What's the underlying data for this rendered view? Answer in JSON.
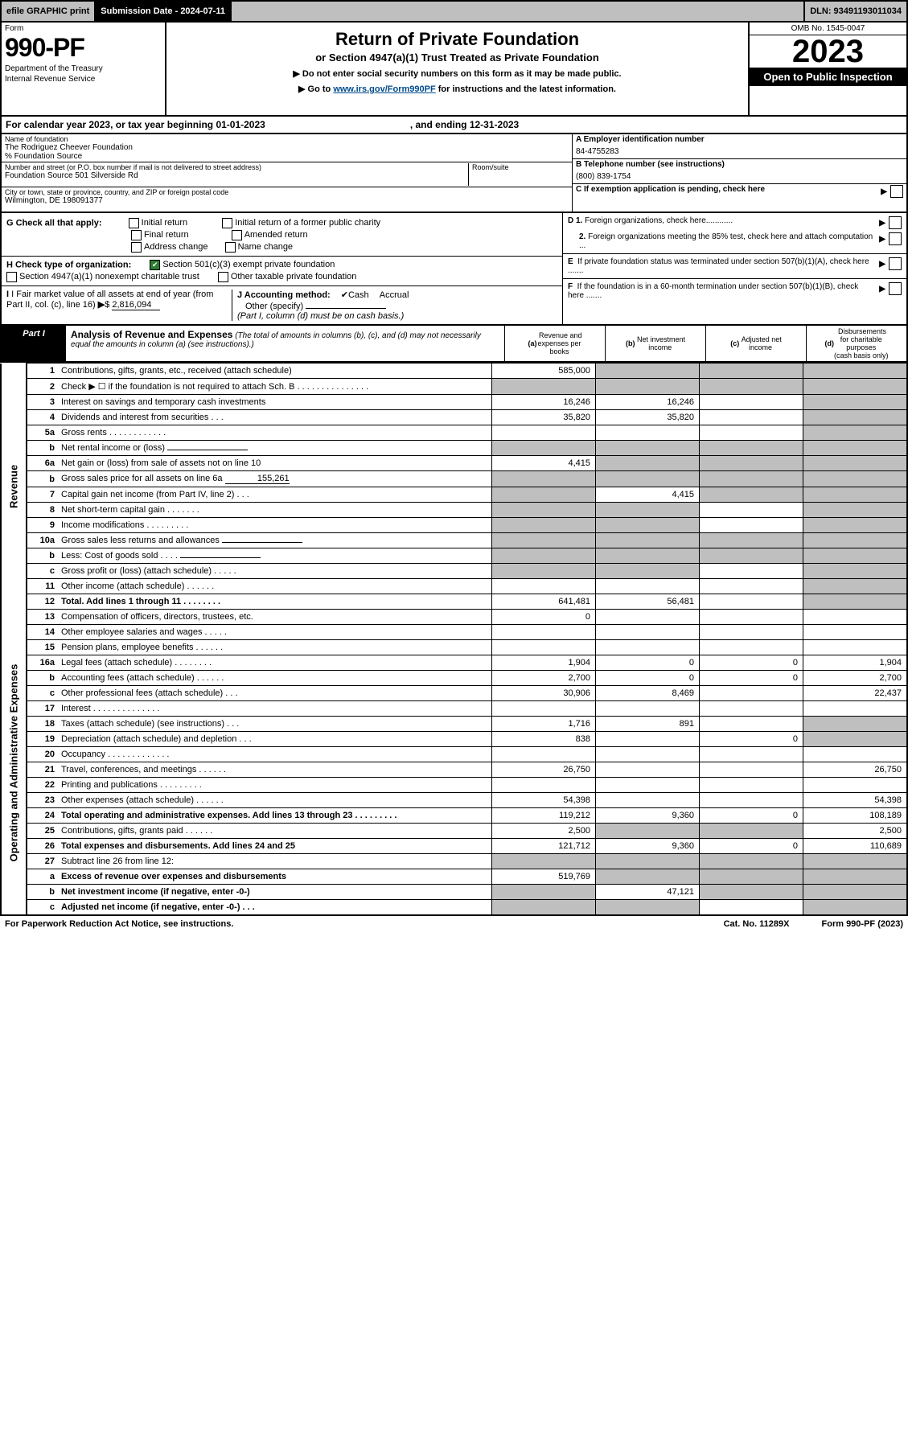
{
  "top": {
    "efile": "efile GRAPHIC print",
    "sub_label": "Submission Date - 2024-07-11",
    "dln": "DLN: 93491193011034"
  },
  "header": {
    "form_word": "Form",
    "form_num": "990-PF",
    "dept": "Department of the Treasury",
    "irs": "Internal Revenue Service",
    "title": "Return of Private Foundation",
    "subtitle": "or Section 4947(a)(1) Trust Treated as Private Foundation",
    "inst1": "▶ Do not enter social security numbers on this form as it may be made public.",
    "inst2_pre": "▶ Go to ",
    "inst2_link": "www.irs.gov/Form990PF",
    "inst2_post": " for instructions and the latest information.",
    "omb": "OMB No. 1545-0047",
    "year": "2023",
    "open": "Open to Public Inspection"
  },
  "cal": {
    "text": "For calendar year 2023, or tax year beginning 01-01-2023",
    "ending": ", and ending 12-31-2023"
  },
  "info": {
    "name_lbl": "Name of foundation",
    "name": "The Rodriguez Cheever Foundation",
    "care": "% Foundation Source",
    "addr_lbl": "Number and street (or P.O. box number if mail is not delivered to street address)",
    "addr": "Foundation Source 501 Silverside Rd",
    "room_lbl": "Room/suite",
    "city_lbl": "City or town, state or province, country, and ZIP or foreign postal code",
    "city": "Wilmington, DE  198091377",
    "a_lbl": "A Employer identification number",
    "a_val": "84-4755283",
    "b_lbl": "B Telephone number (see instructions)",
    "b_val": "(800) 839-1754",
    "c_lbl": "C If exemption application is pending, check here"
  },
  "checks": {
    "g": "G Check all that apply:",
    "g_opts": [
      "Initial return",
      "Initial return of a former public charity",
      "Final return",
      "Amended return",
      "Address change",
      "Name change"
    ],
    "h": "H Check type of organization:",
    "h1": "Section 501(c)(3) exempt private foundation",
    "h2": "Section 4947(a)(1) nonexempt charitable trust",
    "h3": "Other taxable private foundation",
    "i": "I Fair market value of all assets at end of year (from Part II, col. (c), line 16)",
    "i_val": "2,816,094",
    "j": "J Accounting method:",
    "j1": "Cash",
    "j2": "Accrual",
    "j3": "Other (specify)",
    "j_note": "(Part I, column (d) must be on cash basis.)",
    "d1": "D 1. Foreign organizations, check here............",
    "d2": "2. Foreign organizations meeting the 85% test, check here and attach computation ...",
    "e": "E  If private foundation status was terminated under section 507(b)(1)(A), check here .......",
    "f": "F  If the foundation is in a 60-month termination under section 507(b)(1)(B), check here .......",
    "arrow": "▶"
  },
  "part1": {
    "label": "Part I",
    "title": "Analysis of Revenue and Expenses",
    "title_note": " (The total of amounts in columns (b), (c), and (d) may not necessarily equal the amounts in column (a) (see instructions).)",
    "col_a": "(a) Revenue and expenses per books",
    "col_b": "(b) Net investment income",
    "col_c": "(c) Adjusted net income",
    "col_d": "(d) Disbursements for charitable purposes (cash basis only)"
  },
  "side": {
    "rev": "Revenue",
    "exp": "Operating and Administrative Expenses"
  },
  "rows": [
    {
      "n": "1",
      "d": "Contributions, gifts, grants, etc., received (attach schedule)",
      "a": "585,000",
      "ag": false,
      "bg": true,
      "cg": true,
      "dg": true
    },
    {
      "n": "2",
      "d": "Check ▶ ☐ if the foundation is not required to attach Sch. B   .   .   .   .   .   .   .   .   .   .   .   .   .   .   .",
      "ag": true,
      "bg": true,
      "cg": true,
      "dg": true
    },
    {
      "n": "3",
      "d": "Interest on savings and temporary cash investments",
      "a": "16,246",
      "b": "16,246",
      "dg": true
    },
    {
      "n": "4",
      "d": "Dividends and interest from securities   .   .   .",
      "a": "35,820",
      "b": "35,820",
      "dg": true
    },
    {
      "n": "5a",
      "d": "Gross rents   .   .   .   .   .   .   .   .   .   .   .   .",
      "dg": true
    },
    {
      "n": "b",
      "d": "Net rental income or (loss)",
      "ag": true,
      "bg": true,
      "cg": true,
      "dg": true,
      "inline": true
    },
    {
      "n": "6a",
      "d": "Net gain or (loss) from sale of assets not on line 10",
      "a": "4,415",
      "bg": true,
      "cg": true,
      "dg": true
    },
    {
      "n": "b",
      "d": "Gross sales price for all assets on line 6a",
      "inline_val": "155,261",
      "ag": true,
      "bg": true,
      "cg": true,
      "dg": true
    },
    {
      "n": "7",
      "d": "Capital gain net income (from Part IV, line 2)   .   .   .",
      "ag": true,
      "b": "4,415",
      "cg": true,
      "dg": true
    },
    {
      "n": "8",
      "d": "Net short-term capital gain   .   .   .   .   .   .   .",
      "ag": true,
      "bg": true,
      "dg": true
    },
    {
      "n": "9",
      "d": "Income modifications   .   .   .   .   .   .   .   .   .",
      "ag": true,
      "bg": true,
      "dg": true
    },
    {
      "n": "10a",
      "d": "Gross sales less returns and allowances",
      "ag": true,
      "bg": true,
      "cg": true,
      "dg": true,
      "inline": true
    },
    {
      "n": "b",
      "d": "Less: Cost of goods sold   .   .   .   .",
      "ag": true,
      "bg": true,
      "cg": true,
      "dg": true,
      "inline": true
    },
    {
      "n": "c",
      "d": "Gross profit or (loss) (attach schedule)   .   .   .   .   .",
      "ag": true,
      "bg": true,
      "dg": true
    },
    {
      "n": "11",
      "d": "Other income (attach schedule)   .   .   .   .   .   .",
      "dg": true
    },
    {
      "n": "12",
      "d": "Total. Add lines 1 through 11   .   .   .   .   .   .   .   .",
      "a": "641,481",
      "b": "56,481",
      "dg": true,
      "bold": true
    }
  ],
  "exp_rows": [
    {
      "n": "13",
      "d": "Compensation of officers, directors, trustees, etc.",
      "a": "0"
    },
    {
      "n": "14",
      "d": "Other employee salaries and wages   .   .   .   .   ."
    },
    {
      "n": "15",
      "d": "Pension plans, employee benefits   .   .   .   .   .   ."
    },
    {
      "n": "16a",
      "d": "Legal fees (attach schedule)   .   .   .   .   .   .   .   .",
      "a": "1,904",
      "b": "0",
      "c": "0",
      "dd": "1,904"
    },
    {
      "n": "b",
      "d": "Accounting fees (attach schedule)   .   .   .   .   .   .",
      "a": "2,700",
      "b": "0",
      "c": "0",
      "dd": "2,700"
    },
    {
      "n": "c",
      "d": "Other professional fees (attach schedule)   .   .   .",
      "a": "30,906",
      "b": "8,469",
      "dd": "22,437"
    },
    {
      "n": "17",
      "d": "Interest   .   .   .   .   .   .   .   .   .   .   .   .   .   ."
    },
    {
      "n": "18",
      "d": "Taxes (attach schedule) (see instructions)   .   .   .",
      "a": "1,716",
      "b": "891",
      "dg": true
    },
    {
      "n": "19",
      "d": "Depreciation (attach schedule) and depletion   .   .   .",
      "a": "838",
      "c": "0",
      "dg": true
    },
    {
      "n": "20",
      "d": "Occupancy   .   .   .   .   .   .   .   .   .   .   .   .   ."
    },
    {
      "n": "21",
      "d": "Travel, conferences, and meetings   .   .   .   .   .   .",
      "a": "26,750",
      "dd": "26,750"
    },
    {
      "n": "22",
      "d": "Printing and publications   .   .   .   .   .   .   .   .   ."
    },
    {
      "n": "23",
      "d": "Other expenses (attach schedule)   .   .   .   .   .   .",
      "a": "54,398",
      "dd": "54,398"
    },
    {
      "n": "24",
      "d": "Total operating and administrative expenses. Add lines 13 through 23   .   .   .   .   .   .   .   .   .",
      "a": "119,212",
      "b": "9,360",
      "c": "0",
      "dd": "108,189",
      "bold": true
    },
    {
      "n": "25",
      "d": "Contributions, gifts, grants paid   .   .   .   .   .   .",
      "a": "2,500",
      "bg": true,
      "cg": true,
      "dd": "2,500"
    },
    {
      "n": "26",
      "d": "Total expenses and disbursements. Add lines 24 and 25",
      "a": "121,712",
      "b": "9,360",
      "c": "0",
      "dd": "110,689",
      "bold": true
    },
    {
      "n": "27",
      "d": "Subtract line 26 from line 12:",
      "ag": true,
      "bg": true,
      "cg": true,
      "dg": true
    },
    {
      "n": "a",
      "d": "Excess of revenue over expenses and disbursements",
      "a": "519,769",
      "bg": true,
      "cg": true,
      "dg": true,
      "bold": true
    },
    {
      "n": "b",
      "d": "Net investment income (if negative, enter -0-)",
      "ag": true,
      "b": "47,121",
      "cg": true,
      "dg": true,
      "bold": true
    },
    {
      "n": "c",
      "d": "Adjusted net income (if negative, enter -0-)   .   .   .",
      "ag": true,
      "bg": true,
      "dg": true,
      "bold": true
    }
  ],
  "footer": {
    "left": "For Paperwork Reduction Act Notice, see instructions.",
    "mid": "Cat. No. 11289X",
    "right": "Form 990-PF (2023)"
  }
}
